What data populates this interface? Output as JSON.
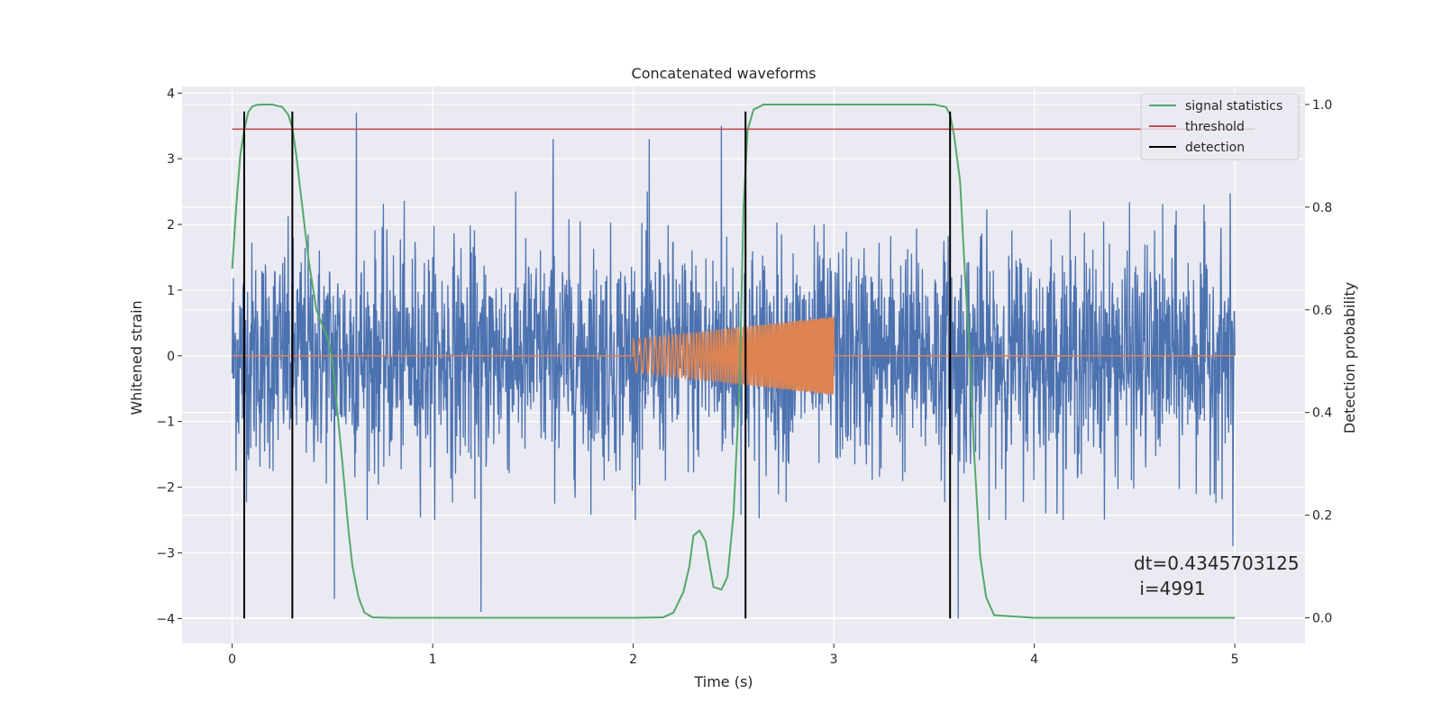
{
  "chart_data": {
    "type": "line",
    "title": "Concatenated waveforms",
    "xlabel": "Time (s)",
    "ylabel": "Whitened strain",
    "y2label": "Detection probability",
    "xlim": [
      -0.25,
      5.35
    ],
    "ylim": [
      -4.38,
      4.1
    ],
    "y2lim": [
      -0.05,
      1.035
    ],
    "x_ticks": [
      0,
      1,
      2,
      3,
      4,
      5
    ],
    "x_tick_labels": [
      "0",
      "1",
      "2",
      "3",
      "4",
      "5"
    ],
    "y_ticks": [
      -4,
      -3,
      -2,
      -1,
      0,
      1,
      2,
      3,
      4
    ],
    "y_tick_labels": [
      "−4",
      "−3",
      "−2",
      "−1",
      "0",
      "1",
      "2",
      "3",
      "4"
    ],
    "y2_ticks": [
      0.0,
      0.2,
      0.4,
      0.6,
      0.8,
      1.0
    ],
    "y2_tick_labels": [
      "0.0",
      "0.2",
      "0.4",
      "0.6",
      "0.8",
      "1.0"
    ],
    "grid": true,
    "legend_position": "top-right",
    "legend": [
      {
        "label": "signal statistics",
        "color": "#55a868"
      },
      {
        "label": "threshold",
        "color": "#c44e52"
      },
      {
        "label": "detection",
        "color": "#000000"
      }
    ],
    "series": [
      {
        "role": "whitened-strain-noise",
        "color": "#4c72b0",
        "x_range": [
          0,
          5
        ],
        "approx_range": [
          -4.0,
          3.7
        ],
        "peak_samples": [
          [
            0.62,
            3.7
          ],
          [
            0.06,
            2.4
          ],
          [
            1.6,
            3.3
          ],
          [
            2.08,
            3.3
          ],
          [
            2.44,
            3.5
          ],
          [
            1.24,
            -3.9
          ],
          [
            0.51,
            -3.7
          ],
          [
            3.62,
            -4.0
          ],
          [
            4.99,
            -2.9
          ]
        ]
      },
      {
        "role": "injected-chirp",
        "color": "#dd8452",
        "baseline": 0,
        "chirp_x_range": [
          2.0,
          3.0
        ],
        "amplitude_start": 0.25,
        "amplitude_end": 0.6
      },
      {
        "name": "signal statistics",
        "color": "#55a868",
        "axis": "right",
        "x": [
          0,
          0.02,
          0.04,
          0.06,
          0.08,
          0.1,
          0.12,
          0.15,
          0.2,
          0.25,
          0.28,
          0.3,
          0.32,
          0.35,
          0.38,
          0.42,
          0.45,
          0.48,
          0.5,
          0.52,
          0.55,
          0.58,
          0.6,
          0.63,
          0.66,
          0.7,
          0.8,
          1.0,
          1.5,
          2.0,
          2.15,
          2.2,
          2.25,
          2.28,
          2.3,
          2.33,
          2.36,
          2.4,
          2.44,
          2.47,
          2.5,
          2.53,
          2.55,
          2.57,
          2.6,
          2.65,
          3.0,
          3.5,
          3.56,
          3.58,
          3.6,
          3.63,
          3.65,
          3.68,
          3.7,
          3.73,
          3.76,
          3.8,
          4.0,
          4.5,
          5.0
        ],
        "y": [
          0.68,
          0.8,
          0.9,
          0.95,
          0.985,
          0.996,
          0.999,
          1.0,
          1.0,
          0.995,
          0.98,
          0.955,
          0.9,
          0.8,
          0.7,
          0.6,
          0.57,
          0.54,
          0.5,
          0.42,
          0.3,
          0.17,
          0.1,
          0.04,
          0.01,
          0.001,
          0.0,
          0.0,
          0.0,
          0.0,
          0.001,
          0.01,
          0.05,
          0.1,
          0.16,
          0.17,
          0.15,
          0.06,
          0.055,
          0.08,
          0.2,
          0.45,
          0.8,
          0.95,
          0.99,
          1.0,
          1.0,
          1.0,
          0.995,
          0.98,
          0.94,
          0.85,
          0.7,
          0.5,
          0.32,
          0.12,
          0.04,
          0.005,
          0.0,
          0.0,
          0.0
        ]
      },
      {
        "name": "threshold",
        "color": "#c44e52",
        "axis": "right",
        "x": [
          0,
          5.1
        ],
        "y": [
          0.952,
          0.952
        ]
      },
      {
        "name": "detection",
        "color": "#000000",
        "type": "vlines",
        "x": [
          0.06,
          0.3,
          2.56,
          3.58
        ],
        "y_range": [
          -4.0,
          3.72
        ]
      }
    ],
    "annotation": {
      "line1": "dt=0.4345703125",
      "line2": " i=4991"
    }
  }
}
